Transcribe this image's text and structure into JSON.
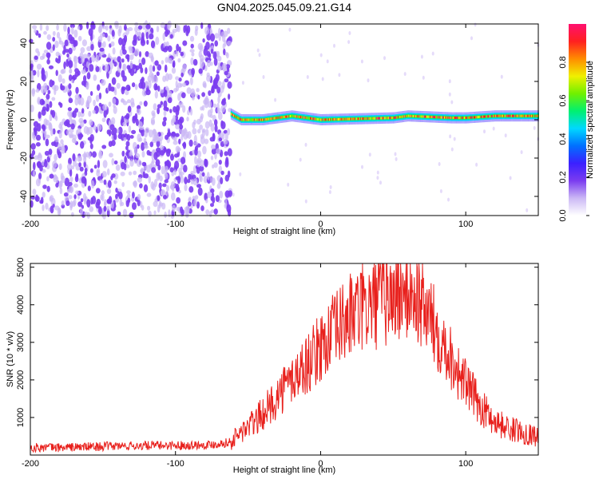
{
  "figure": {
    "title": "GN04.2025.045.09.21.G14"
  },
  "chart_data": [
    {
      "type": "heatmap",
      "xlabel": "Height of straight line (km)",
      "ylabel": "Frequency (Hz)",
      "xlim": [
        -200,
        150
      ],
      "ylim": [
        -50,
        50
      ],
      "x_ticks": [
        -200,
        -100,
        0,
        100
      ],
      "y_ticks": [
        -40,
        -20,
        0,
        20,
        40
      ],
      "grid": false,
      "colorbar": {
        "label": "Normalized spectral amplitude",
        "range": [
          0.0,
          1.0
        ],
        "ticks": [
          0.0,
          0.2,
          0.4,
          0.6,
          0.8
        ],
        "colormap": [
          "#ffffff",
          "#cbb8f5",
          "#7b3cf0",
          "#3b20ff",
          "#0070ff",
          "#00d8ff",
          "#00f070",
          "#70f000",
          "#f0f000",
          "#ff8c00",
          "#ff2020",
          "#ff1070"
        ]
      },
      "regions": [
        {
          "name": "noise",
          "x_range": [
            -200,
            -62
          ],
          "freq_range": [
            -50,
            50
          ],
          "amplitude_range": [
            0.1,
            0.3
          ]
        },
        {
          "name": "carrier",
          "x_range": [
            -62,
            150
          ],
          "freq_center": [
            [
              -62,
              3
            ],
            [
              -55,
              0
            ],
            [
              -40,
              0
            ],
            [
              -20,
              2
            ],
            [
              -10,
              1
            ],
            [
              0,
              0
            ],
            [
              50,
              1
            ],
            [
              60,
              2
            ],
            [
              90,
              1
            ],
            [
              100,
              1
            ],
            [
              120,
              2
            ],
            [
              150,
              2
            ]
          ],
          "amplitude_range": [
            0.6,
            1.0
          ]
        }
      ]
    },
    {
      "type": "line",
      "xlabel": "Height of straight line (km)",
      "ylabel": "SNR (10 * v/v)",
      "xlim": [
        -200,
        150
      ],
      "ylim": [
        0,
        5100
      ],
      "x_ticks": [
        -200,
        -100,
        0,
        100
      ],
      "y_ticks": [
        1000,
        2000,
        3000,
        4000,
        5000
      ],
      "grid": false,
      "series": [
        {
          "color": "#e8201c",
          "x": [
            -200,
            -180,
            -160,
            -140,
            -120,
            -100,
            -80,
            -70,
            -62,
            -55,
            -45,
            -35,
            -25,
            -15,
            -5,
            0,
            10,
            20,
            30,
            40,
            50,
            55,
            60,
            65,
            70,
            75,
            80,
            85,
            90,
            95,
            100,
            105,
            110,
            115,
            120,
            125,
            130,
            140,
            150
          ],
          "y": [
            200,
            200,
            220,
            240,
            250,
            260,
            270,
            300,
            350,
            600,
            900,
            1300,
            1800,
            2200,
            2600,
            2900,
            3300,
            3700,
            3900,
            4100,
            4200,
            4300,
            4350,
            4250,
            4000,
            3700,
            3300,
            3000,
            2600,
            2200,
            1900,
            1600,
            1300,
            1100,
            900,
            800,
            700,
            600,
            500
          ]
        }
      ]
    }
  ]
}
